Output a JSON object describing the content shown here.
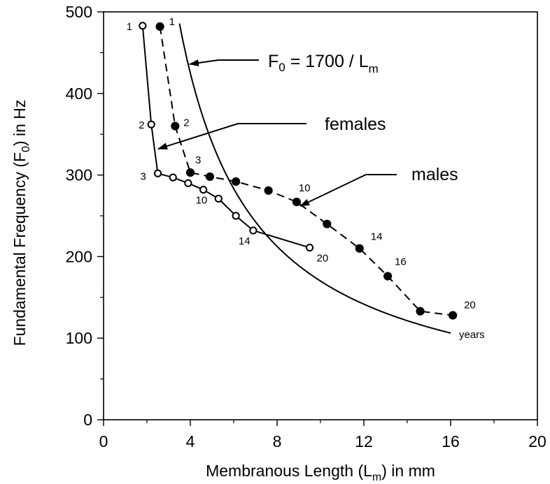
{
  "chart_data": {
    "type": "line",
    "xlabel": {
      "main": "Membranous Length (L",
      "sub": "m",
      "tail": ")  in mm"
    },
    "ylabel": {
      "main": "Fundamental Frequency (F",
      "sub": "0",
      "tail": ")  in Hz"
    },
    "xlim": [
      0,
      20
    ],
    "ylim": [
      0,
      500
    ],
    "xticks": [
      0,
      4,
      8,
      12,
      16,
      20
    ],
    "yticks": [
      0,
      100,
      200,
      300,
      400,
      500
    ],
    "grid": false,
    "series": [
      {
        "name": "females",
        "marker": "open-circle",
        "line": "solid",
        "color": "#000000",
        "x": [
          1.8,
          2.2,
          2.5,
          3.2,
          3.9,
          4.6,
          5.3,
          6.1,
          6.9,
          9.5
        ],
        "y": [
          483,
          362,
          302,
          297,
          290,
          282,
          271,
          250,
          232,
          211
        ],
        "point_labels": [
          "1",
          "2",
          "3",
          "",
          "",
          "10",
          "",
          "",
          "14",
          "20"
        ]
      },
      {
        "name": "males",
        "marker": "filled-circle",
        "line": "dashed",
        "color": "#000000",
        "x": [
          2.6,
          3.3,
          4.0,
          4.9,
          6.1,
          7.6,
          8.9,
          10.3,
          11.8,
          13.1,
          14.6,
          16.1
        ],
        "y": [
          482,
          360,
          303,
          298,
          292,
          281,
          267,
          240,
          210,
          176,
          133,
          128
        ],
        "point_labels": [
          "1",
          "2",
          "3",
          "",
          "",
          "",
          "10",
          "",
          "14",
          "16",
          "",
          "20"
        ]
      },
      {
        "name": "F0 = 1700 / Lm",
        "line": "solid",
        "color": "#000000",
        "formula_constant": 1700,
        "x_range": [
          3.5,
          16.0
        ]
      }
    ],
    "annotations": {
      "formula": {
        "f": "F",
        "f_sub": "0",
        "mid": " = 1700 / L",
        "l_sub": "m"
      },
      "females": "females",
      "males": "males",
      "years": "years"
    }
  }
}
